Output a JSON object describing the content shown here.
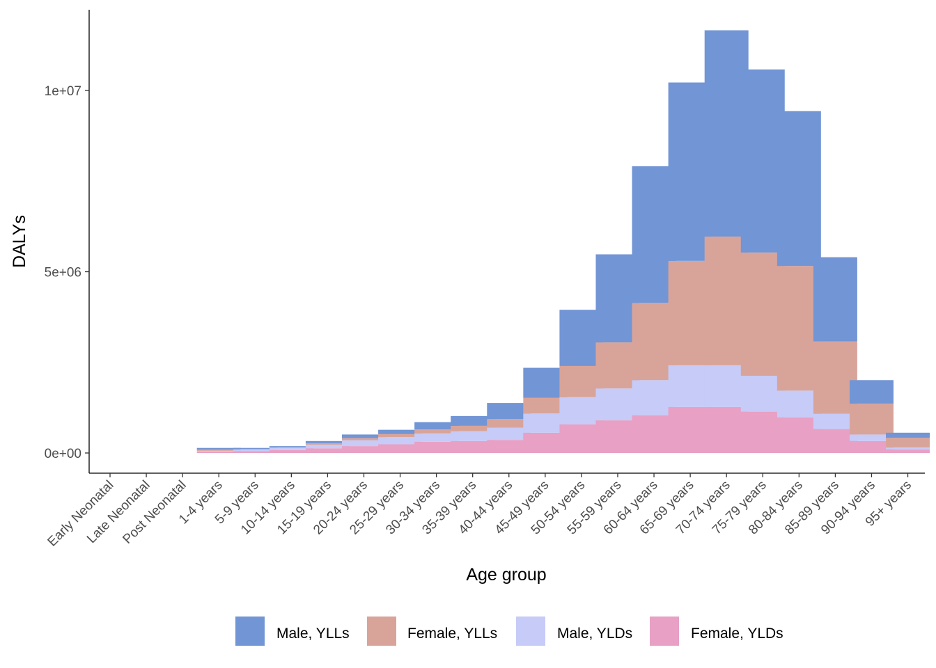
{
  "chart_data": {
    "type": "bar",
    "stacked": true,
    "xlabel": "Age group",
    "ylabel": "DALYs",
    "ylim": [
      -500000,
      12200000
    ],
    "yticks": [
      {
        "value": 0,
        "label": "0e+00"
      },
      {
        "value": 5000000,
        "label": "5e+06"
      },
      {
        "value": 10000000,
        "label": "1e+07"
      }
    ],
    "grid": false,
    "legend_position": "bottom",
    "categories": [
      "Early Neonatal",
      "Late Neonatal",
      "Post Neonatal",
      "1-4 years",
      "5-9 years",
      "10-14 years",
      "15-19 years",
      "20-24 years",
      "25-29 years",
      "30-34 years",
      "35-39 years",
      "40-44 years",
      "45-49 years",
      "50-54 years",
      "55-59 years",
      "60-64 years",
      "65-69 years",
      "70-74 years",
      "75-79 years",
      "80-84 years",
      "85-89 years",
      "90-94 years",
      "95+ years"
    ],
    "series": [
      {
        "name": "Female, YLDs",
        "color": "#E8A0C4",
        "values": [
          0,
          0,
          0,
          40000,
          50000,
          80000,
          130000,
          190000,
          240000,
          310000,
          330000,
          360000,
          560000,
          790000,
          900000,
          1040000,
          1270000,
          1270000,
          1140000,
          980000,
          660000,
          330000,
          100000
        ]
      },
      {
        "name": "Male, YLDs",
        "color": "#C6CBF7",
        "values": [
          0,
          0,
          0,
          20000,
          40000,
          60000,
          100000,
          160000,
          200000,
          230000,
          270000,
          340000,
          530000,
          750000,
          880000,
          970000,
          1150000,
          1150000,
          990000,
          740000,
          420000,
          180000,
          50000
        ]
      },
      {
        "name": "Female, YLLs",
        "color": "#D8A49A",
        "values": [
          0,
          0,
          0,
          30000,
          20000,
          20000,
          40000,
          60000,
          80000,
          110000,
          150000,
          240000,
          430000,
          860000,
          1270000,
          2130000,
          2880000,
          3550000,
          3400000,
          3440000,
          2000000,
          850000,
          270000
        ]
      },
      {
        "name": "Male, YLLs",
        "color": "#7295D5",
        "values": [
          0,
          0,
          0,
          50000,
          30000,
          30000,
          60000,
          100000,
          120000,
          200000,
          270000,
          440000,
          830000,
          1550000,
          2430000,
          3770000,
          4920000,
          5690000,
          5050000,
          4270000,
          2320000,
          650000,
          140000
        ]
      }
    ],
    "legend_order": [
      "Male, YLLs",
      "Female, YLLs",
      "Male, YLDs",
      "Female, YLDs"
    ]
  }
}
